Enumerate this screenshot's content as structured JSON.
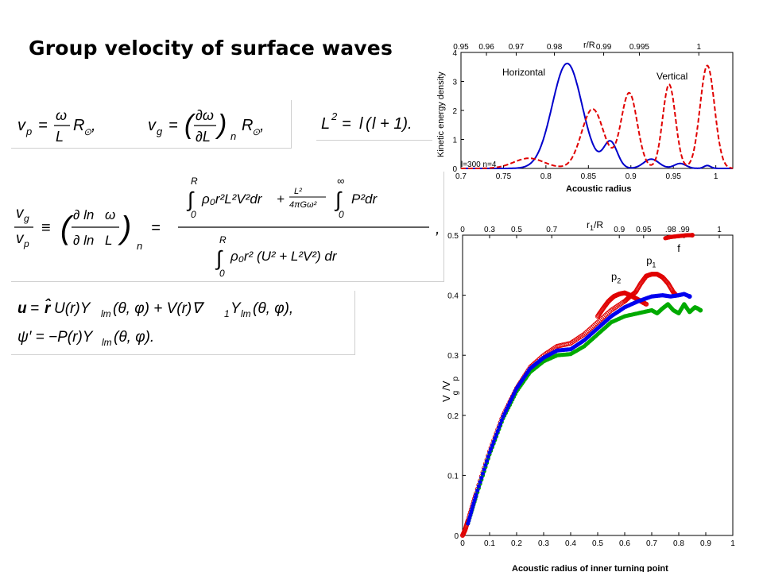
{
  "slide": {
    "title": "Group velocity of surface waves"
  },
  "equations": {
    "vp": "v_p = (ω/L) R_⊙,",
    "vg": "v_g = (∂ω/∂L)_n R_⊙,",
    "L2": "L² = l(l + 1).",
    "ratio_lhs": "v_g/v_p ≡ (∂ ln ω / ∂ ln L)_n =",
    "ratio_num": "∫₀ᴿ ρ₀r²L²V² dr + (L²/4πGω²) ∫₀^∞ P² dr",
    "ratio_den": "∫₀ᴿ ρ₀r² (U² + L²V²) dr",
    "ratio_tail": ",",
    "u": "u = r̂U(r)Y_lm(θ,φ) + V(r)∇₁Y_lm(θ,φ),",
    "psi": "ψ′ = −P(r)Y_lm(θ,φ)."
  },
  "chart_data": [
    {
      "type": "line",
      "title": "",
      "xlabel": "Acoustic radius",
      "ylabel": "Kinetic energy density",
      "top_axis_label": "r/R",
      "top_ticks": [
        "0.95",
        "0.96",
        "0.97",
        "0.98",
        "0.99",
        "0.995",
        "1"
      ],
      "top_tick_positions": [
        0.7,
        0.73,
        0.765,
        0.81,
        0.868,
        0.91,
        0.98
      ],
      "xlim": [
        0.7,
        1.02
      ],
      "ylim": [
        0,
        4
      ],
      "x_ticks": [
        "0.7",
        "0.75",
        "0.8",
        "0.85",
        "0.9",
        "0.95",
        "1"
      ],
      "y_ticks": [
        "0",
        "1",
        "2",
        "3",
        "4"
      ],
      "annotation": "l=300 n=4",
      "series": [
        {
          "name": "Horizontal",
          "color": "#0000cc",
          "style": "solid",
          "peaks": [
            [
              0.825,
              3.62,
              0.0175
            ],
            [
              0.876,
              0.9,
              0.008
            ],
            [
              0.924,
              0.32,
              0.009
            ],
            [
              0.958,
              0.17,
              0.007
            ],
            [
              0.99,
              0.1,
              0.004
            ]
          ]
        },
        {
          "name": "Vertical",
          "color": "#e00000",
          "style": "dashed",
          "peaks": [
            [
              0.78,
              0.35,
              0.018
            ],
            [
              0.855,
              2.05,
              0.013
            ],
            [
              0.898,
              2.6,
              0.0095
            ],
            [
              0.945,
              2.9,
              0.0075
            ],
            [
              0.99,
              3.55,
              0.0085
            ]
          ]
        }
      ]
    },
    {
      "type": "scatter",
      "title": "",
      "xlabel": "Acoustic radius of inner turning point",
      "ylabel": "V_g/V_p",
      "top_axis_label": "r_1/R",
      "top_ticks": [
        "0",
        "0.3",
        "0.5",
        "0.7",
        "0.9",
        "0.95",
        ".98",
        ".99",
        "1"
      ],
      "top_tick_positions": [
        0,
        0.1,
        0.2,
        0.33,
        0.58,
        0.67,
        0.77,
        0.82,
        0.95
      ],
      "xlim": [
        0,
        1
      ],
      "ylim": [
        0,
        0.5
      ],
      "x_ticks": [
        "0",
        "0.1",
        "0.2",
        "0.3",
        "0.4",
        "0.5",
        "0.6",
        "0.7",
        "0.8",
        "0.9",
        "1"
      ],
      "y_ticks": [
        "0",
        "0.1",
        "0.2",
        "0.3",
        "0.4",
        "0.5"
      ],
      "annotations": [
        {
          "label": "p",
          "sub": "1",
          "x": 0.68,
          "y": 0.452
        },
        {
          "label": "p",
          "sub": "2",
          "x": 0.55,
          "y": 0.425
        },
        {
          "label": "f",
          "x": 0.795,
          "y": 0.472
        }
      ],
      "series": [
        {
          "name": "f",
          "color": "#e00000",
          "points": [
            [
              0.75,
              0.495
            ],
            [
              0.77,
              0.497
            ],
            [
              0.79,
              0.498
            ],
            [
              0.81,
              0.499
            ],
            [
              0.83,
              0.5
            ],
            [
              0.85,
              0.5
            ]
          ]
        },
        {
          "name": "p1",
          "color": "#e00000",
          "points": [
            [
              0.0,
              0.0
            ],
            [
              0.01,
              0.01
            ],
            [
              0.02,
              0.025
            ],
            [
              0.05,
              0.07
            ],
            [
              0.1,
              0.14
            ],
            [
              0.15,
              0.2
            ],
            [
              0.2,
              0.245
            ],
            [
              0.25,
              0.28
            ],
            [
              0.3,
              0.3
            ],
            [
              0.35,
              0.315
            ],
            [
              0.4,
              0.32
            ],
            [
              0.45,
              0.335
            ],
            [
              0.5,
              0.355
            ],
            [
              0.55,
              0.375
            ],
            [
              0.6,
              0.39
            ],
            [
              0.62,
              0.398
            ],
            [
              0.64,
              0.405
            ],
            [
              0.66,
              0.42
            ],
            [
              0.68,
              0.432
            ],
            [
              0.7,
              0.435
            ],
            [
              0.72,
              0.435
            ],
            [
              0.74,
              0.43
            ],
            [
              0.76,
              0.42
            ],
            [
              0.78,
              0.405
            ],
            [
              0.79,
              0.4
            ]
          ]
        },
        {
          "name": "p2",
          "color": "#e00000",
          "points": [
            [
              0.5,
              0.365
            ],
            [
              0.52,
              0.378
            ],
            [
              0.54,
              0.39
            ],
            [
              0.56,
              0.398
            ],
            [
              0.58,
              0.402
            ],
            [
              0.6,
              0.404
            ],
            [
              0.62,
              0.4
            ],
            [
              0.64,
              0.395
            ],
            [
              0.66,
              0.39
            ],
            [
              0.68,
              0.385
            ]
          ]
        },
        {
          "name": "green",
          "color": "#00aa00",
          "points": [
            [
              0.02,
              0.02
            ],
            [
              0.05,
              0.065
            ],
            [
              0.1,
              0.135
            ],
            [
              0.15,
              0.195
            ],
            [
              0.2,
              0.24
            ],
            [
              0.25,
              0.272
            ],
            [
              0.3,
              0.29
            ],
            [
              0.35,
              0.3
            ],
            [
              0.4,
              0.302
            ],
            [
              0.45,
              0.315
            ],
            [
              0.5,
              0.335
            ],
            [
              0.55,
              0.355
            ],
            [
              0.6,
              0.365
            ],
            [
              0.65,
              0.37
            ],
            [
              0.7,
              0.375
            ],
            [
              0.72,
              0.37
            ],
            [
              0.74,
              0.378
            ],
            [
              0.76,
              0.385
            ],
            [
              0.78,
              0.375
            ],
            [
              0.8,
              0.37
            ],
            [
              0.82,
              0.385
            ],
            [
              0.84,
              0.372
            ],
            [
              0.86,
              0.38
            ],
            [
              0.87,
              0.378
            ],
            [
              0.88,
              0.375
            ]
          ]
        },
        {
          "name": "blue",
          "color": "#0000ee",
          "points": [
            [
              0.02,
              0.02
            ],
            [
              0.05,
              0.068
            ],
            [
              0.1,
              0.138
            ],
            [
              0.15,
              0.198
            ],
            [
              0.2,
              0.245
            ],
            [
              0.25,
              0.278
            ],
            [
              0.3,
              0.296
            ],
            [
              0.35,
              0.308
            ],
            [
              0.4,
              0.31
            ],
            [
              0.45,
              0.325
            ],
            [
              0.5,
              0.345
            ],
            [
              0.55,
              0.365
            ],
            [
              0.6,
              0.38
            ],
            [
              0.65,
              0.39
            ],
            [
              0.7,
              0.398
            ],
            [
              0.74,
              0.4
            ],
            [
              0.77,
              0.398
            ],
            [
              0.8,
              0.4
            ],
            [
              0.82,
              0.402
            ],
            [
              0.84,
              0.398
            ]
          ]
        }
      ]
    }
  ]
}
